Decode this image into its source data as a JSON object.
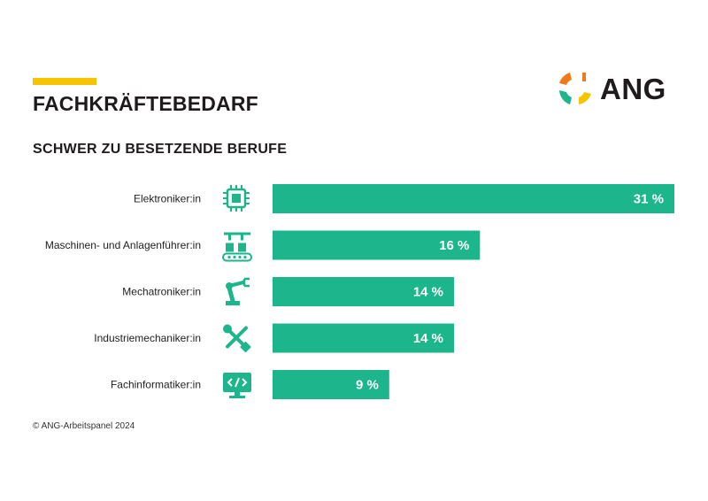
{
  "header": {
    "title": "FACHKRÄFTEBEDARF",
    "subtitle": "SCHWER ZU BESETZENDE BERUFE",
    "logo_text": "ANG"
  },
  "footer": {
    "copyright": "© ANG-Arbeitspanel 2024"
  },
  "colors": {
    "bar": "#1db58b",
    "accent": "#f6c400",
    "logo_orange": "#f07a1a",
    "logo_yellow": "#f6c400",
    "logo_green": "#1db58b"
  },
  "chart_data": {
    "type": "bar",
    "orientation": "horizontal",
    "categories": [
      "Elektroniker:in",
      "Maschinen- und Anlagenführer:in",
      "Mechatroniker:in",
      "Industriemechaniker:in",
      "Fachinformatiker:in"
    ],
    "icons": [
      "chip-icon",
      "assembly-line-icon",
      "robot-arm-icon",
      "wrench-screwdriver-icon",
      "monitor-code-icon"
    ],
    "values": [
      31,
      16,
      14,
      14,
      9
    ],
    "value_labels": [
      "31 %",
      "16 %",
      "14 %",
      "14 %",
      "9 %"
    ],
    "unit": "%",
    "xlim": [
      0,
      31
    ],
    "grid": false,
    "legend": "none"
  }
}
